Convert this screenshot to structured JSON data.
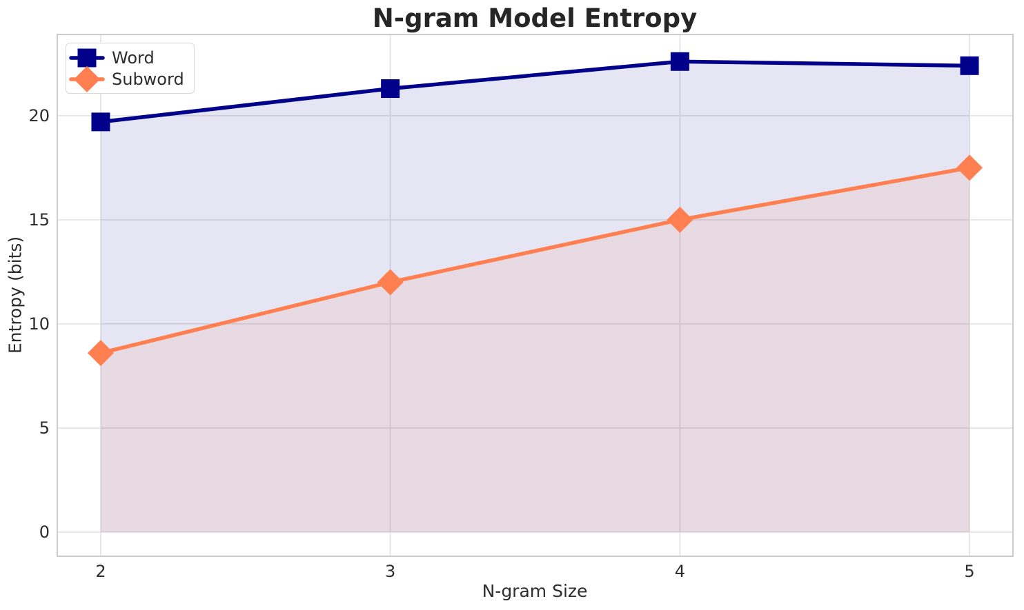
{
  "chart_data": {
    "type": "line",
    "title": "N-gram Model Entropy",
    "xlabel": "N-gram Size",
    "ylabel": "Entropy (bits)",
    "x": [
      2,
      3,
      4,
      5
    ],
    "series": [
      {
        "name": "Word",
        "values": [
          19.7,
          21.3,
          22.6,
          22.4
        ],
        "color": "#00008B",
        "marker": "square",
        "fill_to_zero": true,
        "fill_opacity": 0.1
      },
      {
        "name": "Subword",
        "values": [
          8.6,
          12.0,
          15.0,
          17.5
        ],
        "color": "#FF7F50",
        "marker": "diamond",
        "fill_to_zero": true,
        "fill_opacity": 0.1
      }
    ],
    "xlim": [
      1.85,
      5.15
    ],
    "ylim": [
      -1.16,
      23.9
    ],
    "xticks": [
      2,
      3,
      4,
      5
    ],
    "yticks": [
      0,
      5,
      10,
      15,
      20
    ],
    "grid": true,
    "legend_position": "upper left",
    "background_color": "#FFFFFF",
    "grid_color": "#E5E5E5",
    "spine_color": "#CCCCCC",
    "text_color": "#2D2D2D"
  }
}
